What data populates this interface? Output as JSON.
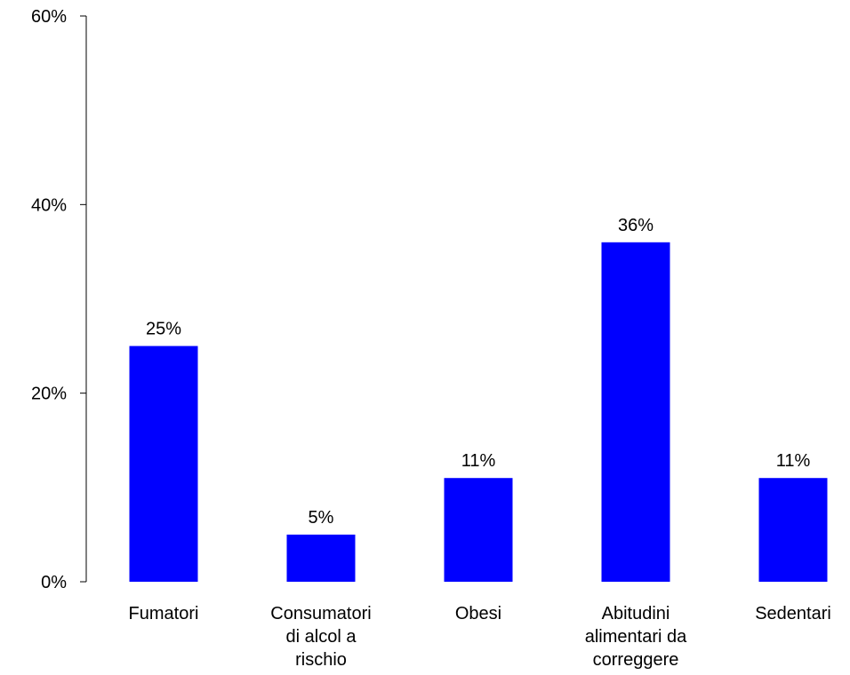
{
  "chart_data": {
    "type": "bar",
    "title": "",
    "xlabel": "",
    "ylabel": "",
    "categories": [
      [
        "Fumatori"
      ],
      [
        "Consumatori",
        "di alcol a",
        "rischio"
      ],
      [
        "Obesi"
      ],
      [
        "Abitudini",
        "alimentari da",
        "correggere"
      ],
      [
        "Sedentari"
      ]
    ],
    "values": [
      25,
      5,
      11,
      36,
      11
    ],
    "value_labels": [
      "25%",
      "5%",
      "11%",
      "36%",
      "11%"
    ],
    "ylim": [
      0,
      60
    ],
    "yticks": [
      0,
      20,
      40,
      60
    ],
    "ytick_labels": [
      "0%",
      "20%",
      "40%",
      "60%"
    ],
    "grid": false,
    "legend": "none",
    "bar_color": "#0000FF"
  }
}
